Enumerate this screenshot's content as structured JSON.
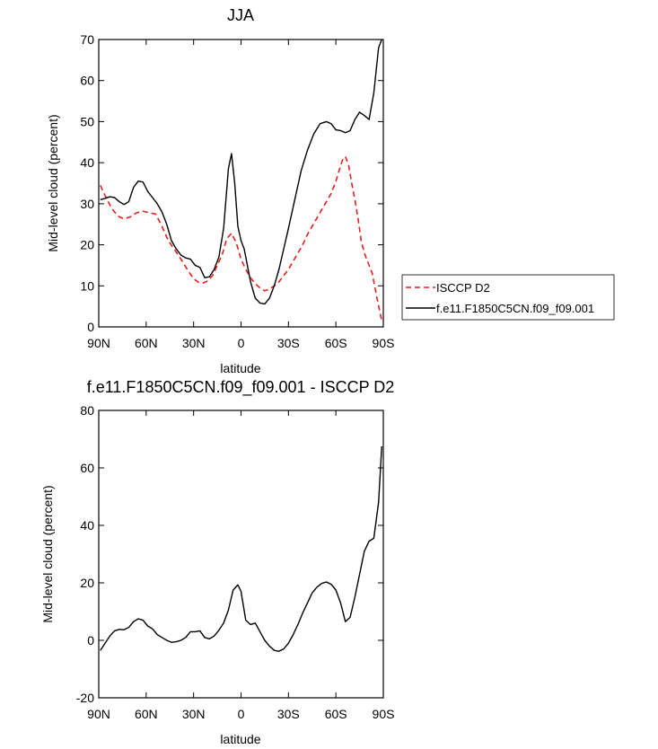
{
  "chart_data": [
    {
      "type": "line",
      "title": "JJA",
      "xlabel": "latitude",
      "ylabel": "Mid-level cloud (percent)",
      "x_tick_values": [
        90,
        60,
        30,
        0,
        -30,
        -60,
        -90
      ],
      "x_tick_labels": [
        "90N",
        "60N",
        "30N",
        "0",
        "30S",
        "60S",
        "90S"
      ],
      "xlim": [
        90,
        -90
      ],
      "ylim": [
        0,
        70
      ],
      "y_ticks": [
        0,
        10,
        20,
        30,
        40,
        50,
        60,
        70
      ],
      "y_tick_labels": [
        "0",
        "10",
        "20",
        "30",
        "40",
        "50",
        "60",
        "70"
      ],
      "grid": false,
      "legend_position": "right, outside plot",
      "series": [
        {
          "name": "ISCCP D2",
          "color": "#e8201c",
          "dash": "dashed",
          "x": [
            89,
            86,
            82,
            78,
            74,
            70,
            66,
            62,
            58,
            54,
            50,
            46,
            42,
            38,
            34,
            30,
            27,
            24,
            21,
            18,
            15,
            12,
            9,
            6,
            3,
            0,
            -3,
            -6,
            -9,
            -12,
            -15,
            -18,
            -21,
            -24,
            -27,
            -30,
            -33,
            -36,
            -39,
            -42,
            -45,
            -48,
            -51,
            -54,
            -57,
            -60,
            -62,
            -64,
            -66,
            -68,
            -70,
            -72,
            -74,
            -76,
            -78,
            -80,
            -83,
            -86,
            -89
          ],
          "y": [
            34.5,
            32,
            29,
            27,
            26.3,
            26.8,
            27.8,
            28.2,
            27.8,
            27.5,
            24.5,
            21,
            18.8,
            16.5,
            14,
            11.7,
            10.9,
            10.7,
            11.2,
            12.5,
            15,
            17.5,
            21.5,
            22.8,
            20.5,
            16.5,
            14,
            12,
            10.5,
            9.5,
            8.8,
            9.2,
            10,
            11,
            12.5,
            14,
            16,
            18,
            20,
            22.5,
            24.5,
            26.5,
            28.5,
            30.5,
            32.5,
            35.5,
            38,
            40.5,
            41.5,
            39.5,
            35,
            31,
            26.5,
            21,
            18,
            16,
            13,
            7,
            1.5
          ]
        },
        {
          "name": "f.e11.F1850C5CN.f09_f09.001",
          "color": "#000000",
          "dash": "solid",
          "x": [
            89,
            86,
            83,
            80,
            77,
            74,
            71,
            68,
            65,
            62,
            59,
            56,
            53,
            50,
            47,
            44,
            41,
            38,
            35,
            32,
            29,
            26,
            23,
            20,
            17,
            14,
            11,
            8,
            6,
            4,
            2,
            0,
            -2,
            -4,
            -6,
            -9,
            -12,
            -15,
            -18,
            -21,
            -24,
            -27,
            -30,
            -34,
            -38,
            -42,
            -46,
            -50,
            -54,
            -57,
            -60,
            -63,
            -66,
            -69,
            -72,
            -75,
            -78,
            -81,
            -84,
            -87,
            -89
          ],
          "y": [
            31,
            31.3,
            31.7,
            31.5,
            30.5,
            29.8,
            30.5,
            34,
            35.5,
            35.3,
            33,
            31.5,
            30,
            28,
            25,
            21,
            19,
            17.5,
            16.8,
            16.5,
            15,
            14.5,
            12,
            12.2,
            14,
            17,
            24,
            38.5,
            42.2,
            35,
            24.5,
            21,
            19,
            15,
            11,
            7,
            5.8,
            5.6,
            7,
            10,
            14,
            19,
            24,
            31,
            38,
            43,
            47,
            49.5,
            50,
            49.5,
            48,
            47.8,
            47.3,
            47.8,
            50.5,
            52.3,
            51.5,
            50.5,
            57,
            68,
            70
          ]
        }
      ]
    },
    {
      "type": "line",
      "title": "f.e11.F1850C5CN.f09_f09.001 - ISCCP D2",
      "xlabel": "latitude",
      "ylabel": "Mid-level cloud (percent)",
      "x_tick_values": [
        90,
        60,
        30,
        0,
        -30,
        -60,
        -90
      ],
      "x_tick_labels": [
        "90N",
        "60N",
        "30N",
        "0",
        "30S",
        "60S",
        "90S"
      ],
      "xlim": [
        90,
        -90
      ],
      "ylim": [
        -20,
        80
      ],
      "y_ticks": [
        -20,
        0,
        20,
        40,
        60,
        80
      ],
      "y_tick_labels": [
        "-20",
        "0",
        "20",
        "40",
        "60",
        "80"
      ],
      "grid": false,
      "series": [
        {
          "color": "#000000",
          "dash": "solid",
          "x": [
            89,
            86,
            83,
            80,
            77,
            74,
            71,
            68,
            65,
            62,
            59,
            56,
            53,
            50,
            47,
            44,
            41,
            38,
            35,
            32,
            29,
            26,
            23,
            20,
            17,
            14,
            11,
            8,
            5,
            2,
            0,
            -3,
            -6,
            -9,
            -12,
            -15,
            -18,
            -21,
            -24,
            -27,
            -30,
            -33,
            -36,
            -39,
            -42,
            -45,
            -48,
            -51,
            -54,
            -57,
            -60,
            -63,
            -66,
            -69,
            -72,
            -75,
            -78,
            -81,
            -84,
            -87,
            -89
          ],
          "y": [
            -3.5,
            -1,
            1.5,
            3.3,
            3.8,
            3.7,
            4.5,
            6.5,
            7.5,
            7,
            5,
            4,
            2,
            1,
            0,
            -0.7,
            -0.5,
            0,
            1,
            3,
            3,
            3.3,
            1,
            0.5,
            1.5,
            3.5,
            6,
            10.5,
            17.5,
            19.3,
            17,
            7,
            5.5,
            6,
            3,
            0,
            -2,
            -3.5,
            -3.8,
            -3,
            -1,
            2,
            5.5,
            9.5,
            13,
            16.5,
            18.5,
            19.8,
            20.3,
            19.5,
            17.5,
            13,
            6.5,
            8,
            15,
            23,
            31,
            34.5,
            35.5,
            48,
            67.5
          ]
        }
      ]
    }
  ]
}
